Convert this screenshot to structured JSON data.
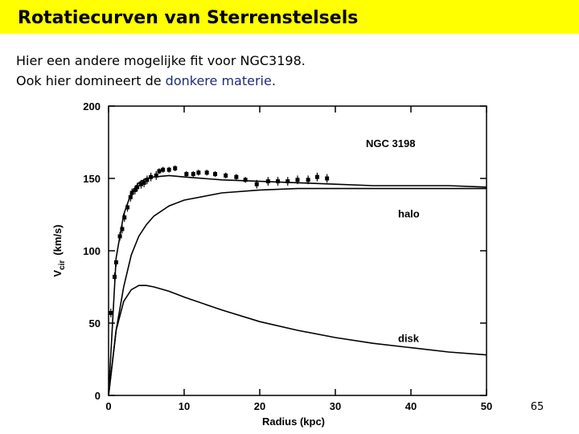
{
  "slide": {
    "title": "Rotatiecurven van Sterrenstelsels",
    "line1": "Hier een andere mogelijke fit voor NGC3198.",
    "line2_start": "Ook hier domineert de ",
    "line2_highlight": "donkere materie",
    "line2_end": ".",
    "page_number": "65"
  },
  "chart_data": {
    "type": "line",
    "xlabel": "Radius (kpc)",
    "ylabel": "V",
    "ylabel_sub": "cir",
    "ylabel_unit": "(km/s)",
    "annotations": [
      "NGC 3198"
    ],
    "xlim": [
      0,
      50
    ],
    "ylim": [
      0,
      200
    ],
    "xticks": [
      0,
      10,
      20,
      30,
      40,
      50
    ],
    "yticks": [
      0,
      50,
      100,
      150,
      200
    ],
    "series": [
      {
        "style": "points",
        "color": "#000000",
        "x": [
          0.3,
          0.8,
          1.0,
          1.5,
          1.8,
          2.1,
          2.5,
          2.9,
          3.1,
          3.5,
          3.8,
          4.3,
          4.7,
          5.1,
          5.6,
          6.3,
          6.7,
          7.2,
          8.0,
          8.8,
          10.3,
          11.2,
          11.9,
          13.0,
          14.1,
          15.5,
          16.9,
          18.1,
          19.6,
          21.1,
          22.4,
          23.7,
          25.0,
          26.4,
          27.6,
          28.9
        ],
        "values": [
          57,
          82,
          92,
          110,
          115,
          123,
          130,
          137,
          140,
          142,
          144,
          146,
          147,
          149,
          151,
          152,
          155,
          156,
          156,
          157,
          153,
          153,
          154,
          154,
          153,
          152,
          151,
          149,
          146,
          148,
          148,
          148,
          149,
          149,
          151,
          150
        ],
        "errors": [
          3,
          3,
          3,
          3,
          3,
          3,
          3,
          3,
          3,
          3,
          3,
          3,
          3,
          3,
          3,
          3,
          2,
          2,
          2,
          2,
          2,
          2,
          2,
          2,
          2,
          2,
          2,
          2,
          3,
          3,
          3,
          3,
          3,
          3,
          3,
          3
        ]
      },
      {
        "style": "line",
        "color": "#000000",
        "x": [
          0,
          1,
          2,
          3,
          4,
          5,
          6,
          8,
          10,
          15,
          20,
          25,
          30,
          35,
          40,
          45,
          50
        ],
        "values": [
          0,
          95,
          125,
          140,
          147,
          150,
          151,
          152,
          151,
          149,
          148,
          147,
          146,
          145,
          145,
          145,
          144
        ]
      },
      {
        "name": "halo",
        "style": "line",
        "color": "#000000",
        "x": [
          0,
          1,
          2,
          3,
          4,
          5,
          6,
          8,
          10,
          15,
          20,
          25,
          30,
          35,
          40,
          45,
          50
        ],
        "values": [
          0,
          45,
          75,
          97,
          110,
          118,
          124,
          131,
          135,
          140,
          142,
          143,
          143,
          143,
          143,
          143,
          143
        ]
      },
      {
        "name": "disk",
        "style": "line",
        "color": "#000000",
        "x": [
          0,
          1,
          2,
          3,
          4,
          5,
          6,
          8,
          10,
          15,
          20,
          25,
          30,
          35,
          40,
          45,
          50
        ],
        "values": [
          0,
          45,
          65,
          73,
          76,
          76,
          75,
          72,
          68,
          59,
          51,
          45,
          40,
          36,
          33,
          30,
          28
        ]
      }
    ]
  }
}
